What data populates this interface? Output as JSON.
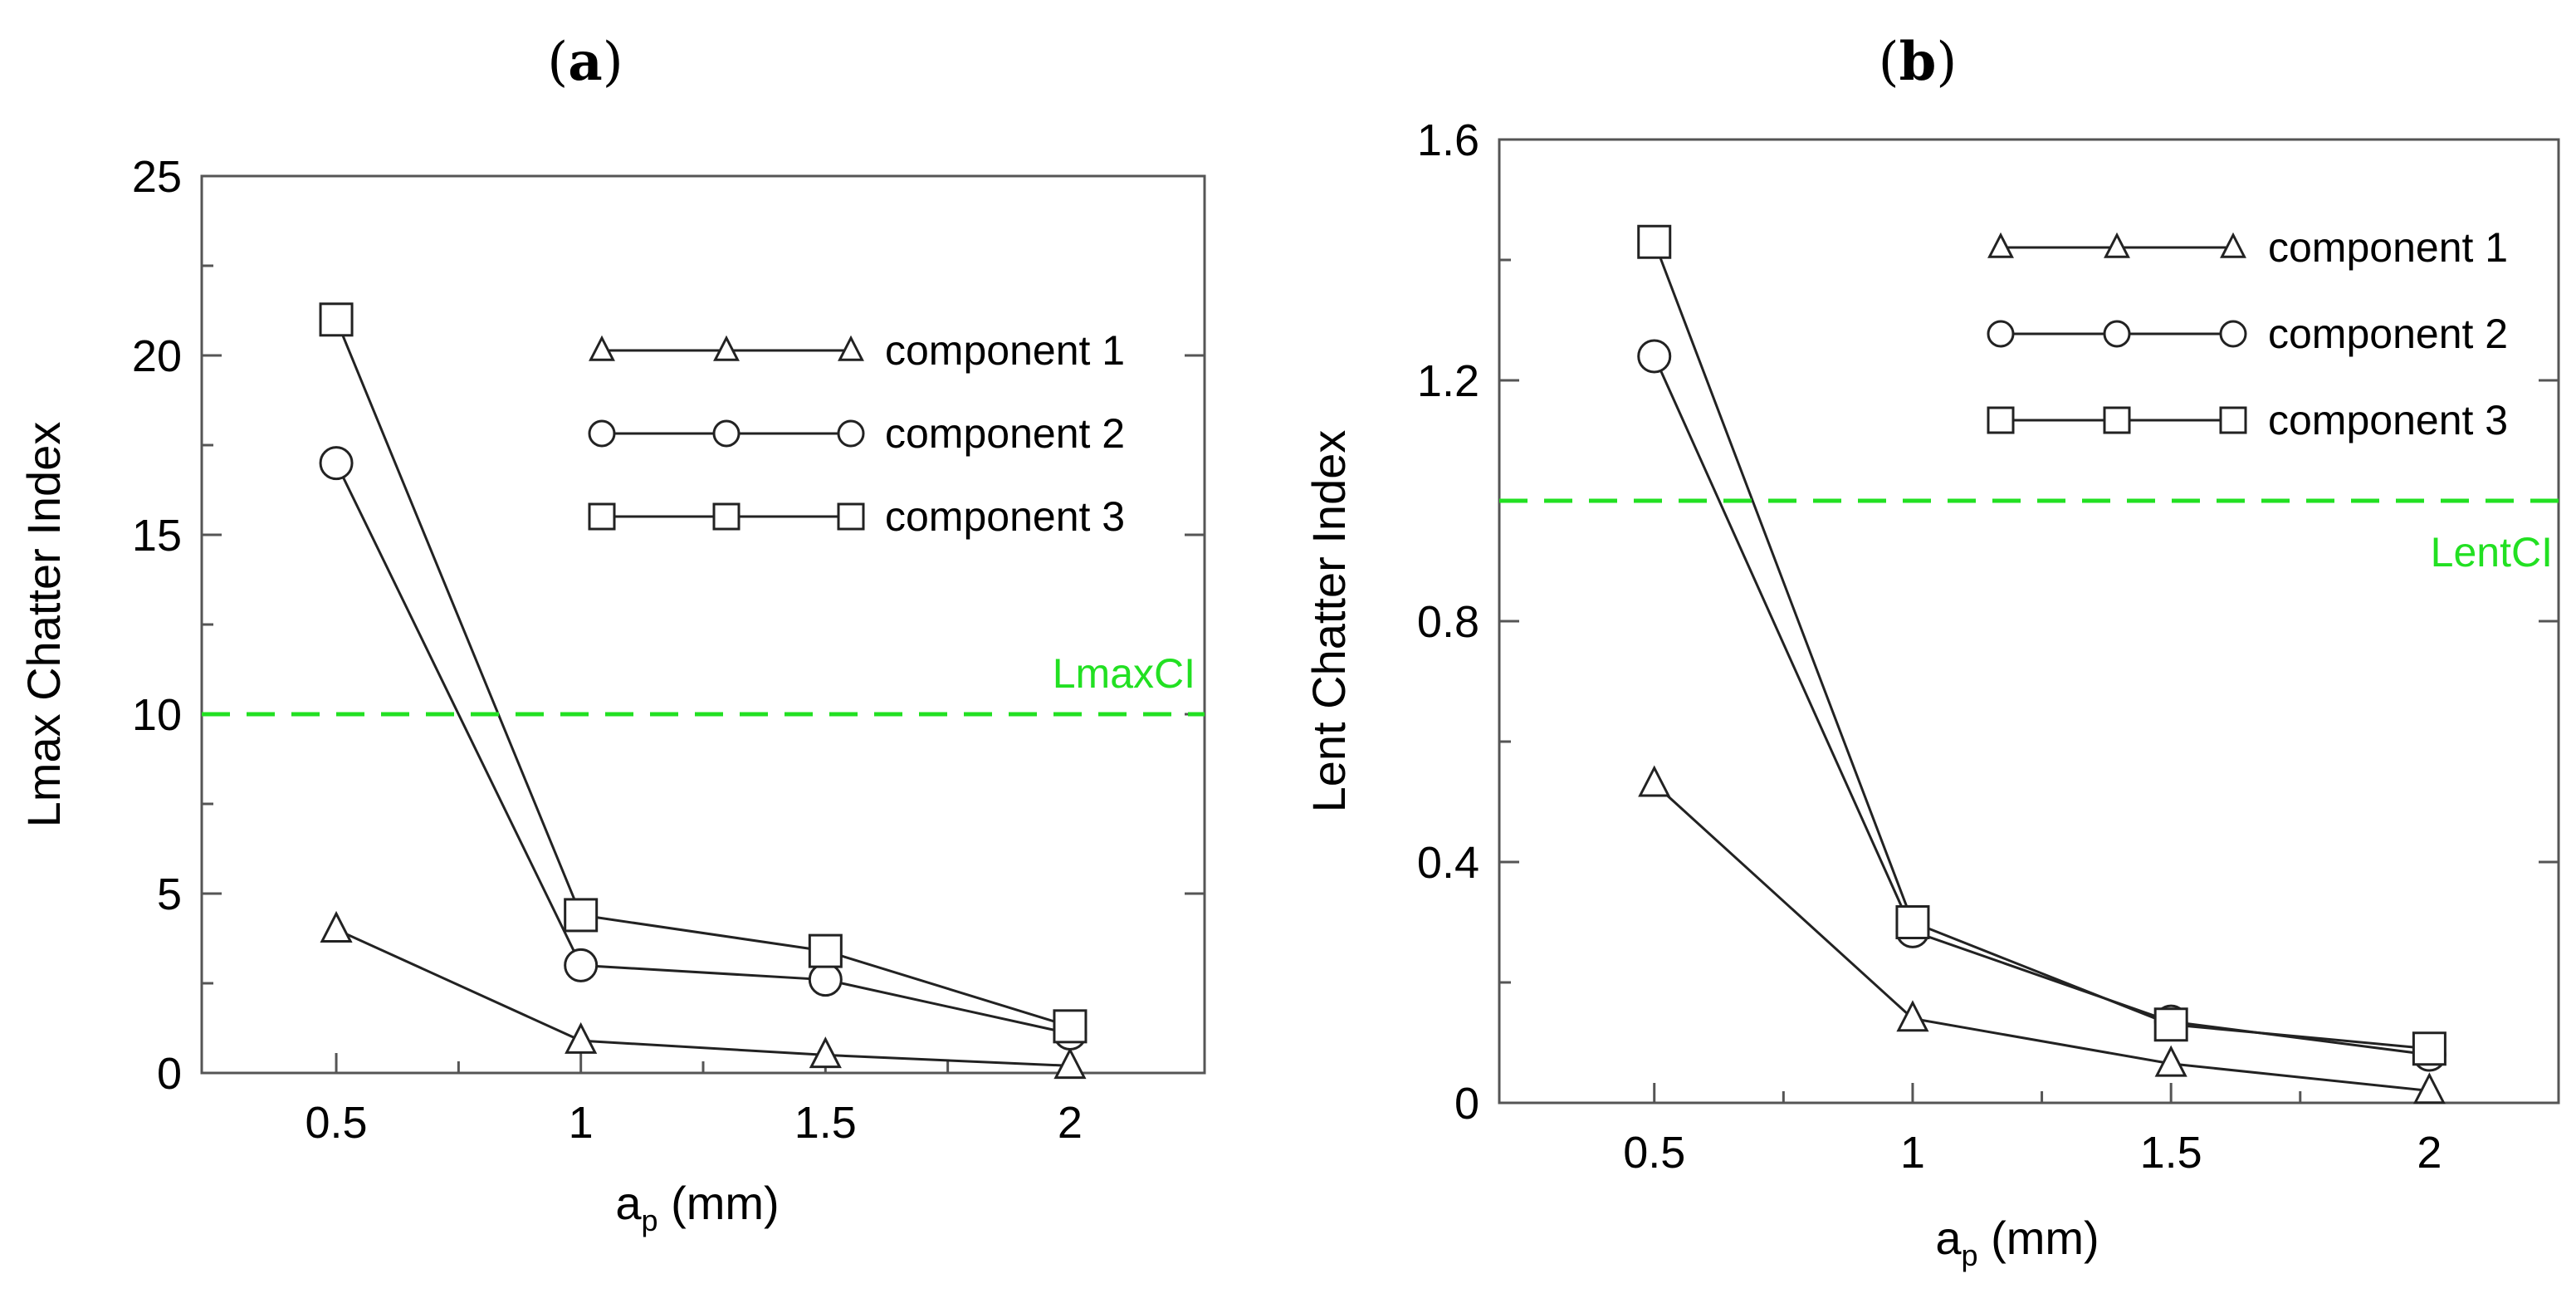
{
  "chart_data": [
    {
      "type": "line",
      "panel_label": "a",
      "title": "(a)",
      "xlabel_main": "a",
      "xlabel_sub": "p",
      "xlabel_unit": " (mm)",
      "ylabel": "Lmax Chatter Index",
      "x": [
        0.5,
        1,
        1.5,
        2
      ],
      "xticks": [
        "0.5",
        "1",
        "1.5",
        "2"
      ],
      "yticks": [
        "0",
        "5",
        "10",
        "15",
        "20",
        "25"
      ],
      "xlim": [
        0.225,
        2.275
      ],
      "ylim": [
        0,
        25
      ],
      "series": [
        {
          "name": "component 1",
          "marker": "triangle",
          "values": [
            4.0,
            0.9,
            0.5,
            0.2
          ]
        },
        {
          "name": "component 2",
          "marker": "circle",
          "values": [
            17.0,
            3.0,
            2.6,
            1.1
          ]
        },
        {
          "name": "component 3",
          "marker": "square",
          "values": [
            21.0,
            4.4,
            3.4,
            1.3
          ]
        }
      ],
      "threshold": {
        "label": "LmaxCI",
        "value": 10,
        "color": "#22e022"
      },
      "legend_position": "top-right"
    },
    {
      "type": "line",
      "panel_label": "b",
      "title": "(b)",
      "xlabel_main": "a",
      "xlabel_sub": "p",
      "xlabel_unit": " (mm)",
      "ylabel": "Lent Chatter Index",
      "x": [
        0.5,
        1,
        1.5,
        2
      ],
      "xticks": [
        "0.5",
        "1",
        "1.5",
        "2"
      ],
      "yticks": [
        "0",
        "0.4",
        "0.8",
        "1.2",
        "1.6"
      ],
      "xlim": [
        0.2,
        2.25
      ],
      "ylim": [
        0,
        1.6
      ],
      "series": [
        {
          "name": "component 1",
          "marker": "triangle",
          "values": [
            0.53,
            0.14,
            0.065,
            0.02
          ]
        },
        {
          "name": "component 2",
          "marker": "circle",
          "values": [
            1.24,
            0.285,
            0.135,
            0.08
          ]
        },
        {
          "name": "component 3",
          "marker": "square",
          "values": [
            1.43,
            0.3,
            0.13,
            0.09
          ]
        }
      ],
      "threshold": {
        "label": "LentCI",
        "value": 1.0,
        "color": "#22e022"
      },
      "legend_position": "top-right"
    }
  ]
}
